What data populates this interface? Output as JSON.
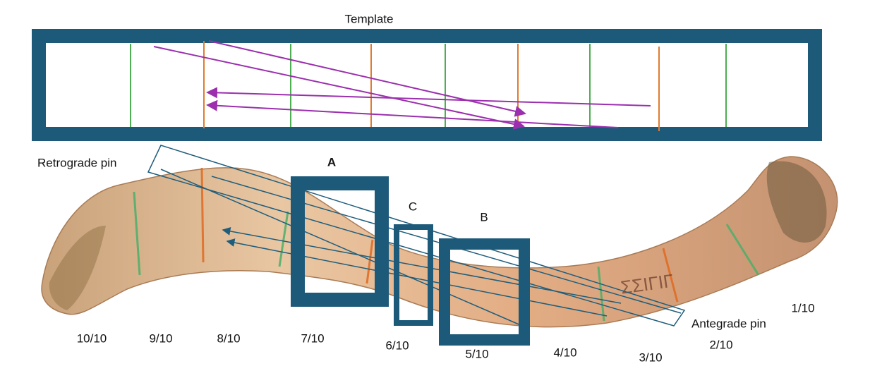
{
  "template": {
    "title": "Template"
  },
  "pins": {
    "retrograde": "Retrograde pin",
    "antegrade": "Antegrade pin"
  },
  "boxes": [
    "A",
    "C",
    "B"
  ],
  "scale": [
    "10/10",
    "9/10",
    "8/10",
    "7/10",
    "6/10",
    "5/10",
    "4/10",
    "3/10",
    "2/10",
    "1/10"
  ]
}
